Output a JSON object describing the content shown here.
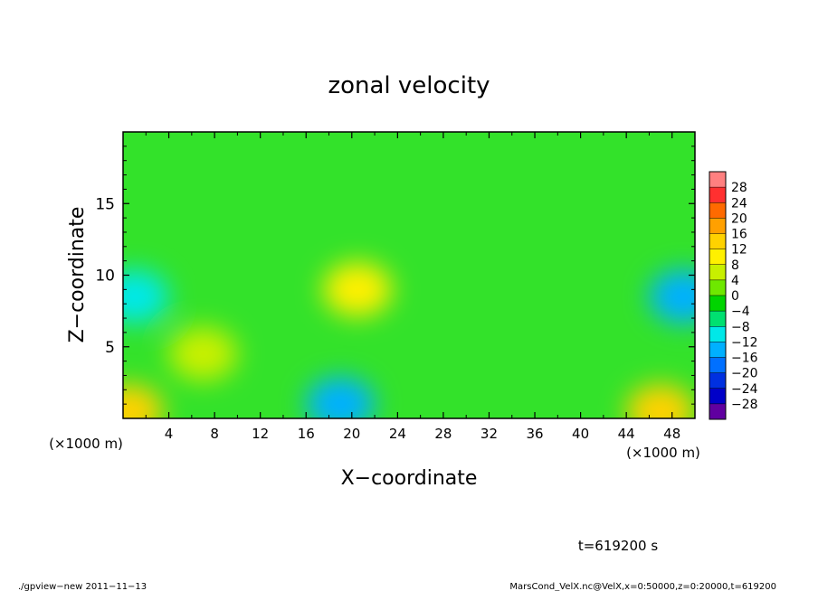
{
  "chart_data": {
    "type": "heatmap",
    "title": "zonal velocity",
    "xlabel": "X−coordinate",
    "ylabel": "Z−coordinate",
    "x_units": "(×1000 m)",
    "x_units_right": "(×1000 m)",
    "xlim": [
      0,
      50
    ],
    "ylim": [
      0,
      20
    ],
    "x_ticks": [
      "4",
      "8",
      "12",
      "16",
      "20",
      "24",
      "28",
      "32",
      "36",
      "40",
      "44",
      "48"
    ],
    "y_ticks": [
      "5",
      "10",
      "15"
    ],
    "colorbar": {
      "levels": [
        "28",
        "24",
        "20",
        "16",
        "12",
        "8",
        "4",
        "0",
        "−4",
        "−8",
        "−12",
        "−16",
        "−20",
        "−24",
        "−28"
      ],
      "colors": [
        "#ff8080",
        "#ff3030",
        "#ff6a00",
        "#ffa000",
        "#ffd200",
        "#fff000",
        "#c8f000",
        "#6ee800",
        "#00d400",
        "#00e070",
        "#00e8e8",
        "#00b0ff",
        "#0070ff",
        "#0030e0",
        "#0000c8",
        "#6000a0"
      ]
    },
    "field_features": [
      {
        "x": 20.5,
        "z": 9,
        "value": 9
      },
      {
        "x": 7,
        "z": 4.5,
        "value": 8
      },
      {
        "x": 19,
        "z": 1,
        "value": -14
      },
      {
        "x": 1,
        "z": 8.5,
        "value": -10
      },
      {
        "x": 49,
        "z": 8.5,
        "value": -12
      },
      {
        "x": 0.5,
        "z": 0.5,
        "value": 14
      },
      {
        "x": 47,
        "z": 0.5,
        "value": 16
      }
    ]
  },
  "annotation_time": "t=619200 s",
  "footer_left": "./gpview−new   2011−11−13",
  "footer_right": "MarsCond_VelX.nc@VelX,x=0:50000,z=0:20000,t=619200"
}
